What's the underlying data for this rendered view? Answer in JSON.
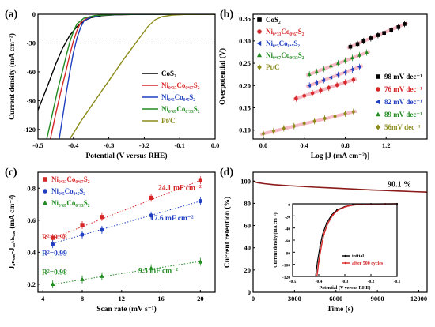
{
  "chart_data": [
    {
      "panel": "(a)",
      "type": "line",
      "xlabel": "Potential (V versus RHE)",
      "ylabel": "Current density (mA cm⁻²)",
      "xlim": [
        -0.5,
        0.0
      ],
      "ylim": [
        -130,
        0
      ],
      "xticks": [
        "-0.5",
        "-0.4",
        "-0.3",
        "-0.2",
        "-0.1",
        "0.0"
      ],
      "xtick_values": [
        -0.5,
        -0.4,
        -0.3,
        -0.2,
        -0.1,
        0.0
      ],
      "yticks": [
        "0",
        "-30",
        "-60",
        "-90",
        "-120"
      ],
      "ytick_values": [
        0,
        -30,
        -60,
        -90,
        -120
      ],
      "reference_line": -30,
      "legend_position": "bottom-right",
      "series": [
        {
          "name": "CoS₂",
          "color": "#000000",
          "x": [
            -0.53,
            -0.5,
            -0.47,
            -0.45,
            -0.43,
            -0.41,
            -0.39,
            -0.37,
            -0.35,
            -0.32,
            -0.28,
            -0.22,
            -0.15,
            0.0
          ],
          "y": [
            -130,
            -100,
            -72,
            -52,
            -35,
            -22,
            -13,
            -7,
            -3.5,
            -1.5,
            -0.6,
            -0.2,
            -0.05,
            0
          ]
        },
        {
          "name": "Ni₀.₃₃Co₀.₆₇S₂",
          "color": "#d62728",
          "x": [
            -0.465,
            -0.45,
            -0.435,
            -0.42,
            -0.41,
            -0.4,
            -0.39,
            -0.38,
            -0.36,
            -0.33,
            -0.28,
            -0.2,
            0.0
          ],
          "y": [
            -130,
            -104,
            -80,
            -58,
            -42,
            -28,
            -17,
            -9,
            -3.5,
            -1.2,
            -0.4,
            -0.1,
            0
          ]
        },
        {
          "name": "Ni₀.₅Co₀.₅S₂",
          "color": "#1f3fbf",
          "x": [
            -0.44,
            -0.43,
            -0.42,
            -0.41,
            -0.4,
            -0.39,
            -0.38,
            -0.37,
            -0.35,
            -0.32,
            -0.27,
            -0.2,
            0.0
          ],
          "y": [
            -130,
            -106,
            -82,
            -60,
            -40,
            -25,
            -14,
            -7,
            -2.8,
            -1.0,
            -0.3,
            -0.1,
            0
          ]
        },
        {
          "name": "Ni₀.₆₇Co₀.₃₃S₂",
          "color": "#228b22",
          "x": [
            -0.475,
            -0.46,
            -0.445,
            -0.43,
            -0.42,
            -0.41,
            -0.4,
            -0.39,
            -0.37,
            -0.34,
            -0.29,
            -0.21,
            0.0
          ],
          "y": [
            -130,
            -105,
            -80,
            -58,
            -43,
            -29,
            -18,
            -10,
            -4,
            -1.4,
            -0.4,
            -0.1,
            0
          ]
        },
        {
          "name": "Pt/C",
          "color": "#8b8b1a",
          "x": [
            -0.41,
            -0.38,
            -0.35,
            -0.32,
            -0.29,
            -0.26,
            -0.23,
            -0.21,
            -0.19,
            -0.17,
            -0.15,
            -0.12,
            -0.08,
            0.0
          ],
          "y": [
            -130,
            -112,
            -96,
            -80,
            -64,
            -48,
            -33,
            -23,
            -13,
            -6,
            -2.5,
            -0.8,
            -0.2,
            0
          ]
        }
      ]
    },
    {
      "panel": "(b)",
      "type": "scatter",
      "xlabel": "Log [J (mA cm⁻²)]",
      "ylabel": "Overpotential (V)",
      "xlim": [
        -0.1,
        1.6
      ],
      "ylim": [
        0.08,
        0.36
      ],
      "xticks": [
        "0.0",
        "0.4",
        "0.8",
        "1.2"
      ],
      "xtick_values": [
        0.0,
        0.4,
        0.8,
        1.2
      ],
      "yticks": [
        "0.10",
        "0.15",
        "0.20",
        "0.25",
        "0.30",
        "0.35"
      ],
      "ytick_values": [
        0.1,
        0.15,
        0.2,
        0.25,
        0.3,
        0.35
      ],
      "legend_position": "top-left",
      "slope_legend_position": "bottom-right",
      "series": [
        {
          "name": "CoS₂",
          "color": "#000000",
          "marker": "square",
          "slope": "98 mV dec⁻¹",
          "x": [
            0.85,
            0.92,
            0.98,
            1.05,
            1.12,
            1.18,
            1.25,
            1.32,
            1.38
          ],
          "y": [
            0.287,
            0.293,
            0.3,
            0.306,
            0.313,
            0.318,
            0.325,
            0.331,
            0.338
          ]
        },
        {
          "name": "Ni₀.₃₃Co₀.₆₇S₂",
          "color": "#d62728",
          "marker": "circle",
          "slope": "76 mV dec⁻¹",
          "x": [
            0.32,
            0.4,
            0.48,
            0.56,
            0.64,
            0.72,
            0.8,
            0.88
          ],
          "y": [
            0.171,
            0.177,
            0.183,
            0.189,
            0.195,
            0.201,
            0.207,
            0.213
          ]
        },
        {
          "name": "Ni₀.₅Co₀.₅S₂",
          "color": "#1f3fbf",
          "marker": "triangle-left",
          "slope": "82 mV dec⁻¹",
          "x": [
            0.45,
            0.52,
            0.59,
            0.66,
            0.73,
            0.8,
            0.87,
            0.94
          ],
          "y": [
            0.2,
            0.206,
            0.212,
            0.218,
            0.224,
            0.23,
            0.236,
            0.242
          ]
        },
        {
          "name": "Ni₀.₆₇Co₀.₃₃S₂",
          "color": "#228b22",
          "marker": "triangle-up",
          "slope": "89 mV dec⁻¹",
          "x": [
            0.45,
            0.52,
            0.59,
            0.66,
            0.73,
            0.8,
            0.87,
            0.94,
            1.01
          ],
          "y": [
            0.225,
            0.231,
            0.237,
            0.244,
            0.25,
            0.256,
            0.262,
            0.268,
            0.274
          ]
        },
        {
          "name": "Pt/C",
          "color": "#8b8b1a",
          "marker": "diamond",
          "slope": "56mV dec⁻¹",
          "x": [
            0.0,
            0.1,
            0.2,
            0.3,
            0.4,
            0.5,
            0.6,
            0.7,
            0.8,
            0.88
          ],
          "y": [
            0.092,
            0.098,
            0.104,
            0.109,
            0.115,
            0.12,
            0.126,
            0.131,
            0.137,
            0.141
          ]
        }
      ]
    },
    {
      "panel": "(c)",
      "type": "scatter",
      "xlabel": "Scan rate (mV s⁻¹)",
      "ylabel": "Jₐₙₒₔₑ-Jₔₐₜₕₒₔₑ (mA cm⁻²)",
      "xlim": [
        3.5,
        21.5
      ],
      "ylim": [
        0.15,
        0.9
      ],
      "xticks": [
        "4",
        "8",
        "12",
        "16",
        "20"
      ],
      "xtick_values": [
        4,
        8,
        12,
        16,
        20
      ],
      "yticks": [
        "0.2",
        "0.4",
        "0.6",
        "0.8"
      ],
      "ytick_values": [
        0.2,
        0.4,
        0.6,
        0.8
      ],
      "legend_position": "top-left",
      "series": [
        {
          "name": "Ni₀.₃₃Co₀.₆₇S₂",
          "color": "#d62728",
          "marker": "square",
          "x": [
            5,
            8,
            10,
            15,
            20
          ],
          "y": [
            0.49,
            0.57,
            0.62,
            0.74,
            0.85
          ],
          "fit": [
            [
              5,
              0.487
            ],
            [
              20,
              0.849
            ]
          ],
          "r2": "R²=0.98",
          "capacitance": "24.1 mF cm⁻²"
        },
        {
          "name": "Ni₀.₅Co₀.₅S₂",
          "color": "#1f3fbf",
          "marker": "circle",
          "x": [
            5,
            8,
            10,
            15,
            20
          ],
          "y": [
            0.45,
            0.51,
            0.54,
            0.63,
            0.72
          ],
          "fit": [
            [
              5,
              0.455
            ],
            [
              20,
              0.719
            ]
          ],
          "r2": "R²=0.99",
          "capacitance": "17.6 mF cm⁻²"
        },
        {
          "name": "Ni₀.₆₇Co₀.₃₃S₂",
          "color": "#228b22",
          "marker": "triangle-up",
          "x": [
            5,
            8,
            10,
            15,
            20
          ],
          "y": [
            0.2,
            0.23,
            0.25,
            0.3,
            0.34
          ],
          "fit": [
            [
              5,
              0.2
            ],
            [
              20,
              0.343
            ]
          ],
          "r2": "R²=0.98",
          "capacitance": "9.5 mF cm⁻²"
        }
      ]
    },
    {
      "panel": "(d)",
      "type": "line",
      "xlabel": "Time (s)",
      "ylabel": "Current retention (%)",
      "xlim": [
        0,
        12600
      ],
      "ylim": [
        0,
        108
      ],
      "xticks": [
        "0",
        "3000",
        "6000",
        "9000",
        "12000"
      ],
      "xtick_values": [
        0,
        3000,
        6000,
        9000,
        12000
      ],
      "yticks": [
        "0",
        "20",
        "40",
        "60",
        "80",
        "100"
      ],
      "ytick_values": [
        0,
        20,
        40,
        60,
        80,
        100
      ],
      "annotation": "90.1 %",
      "series": [
        {
          "name": "retention",
          "color": "#8b1a1a",
          "x": [
            0,
            300,
            800,
            1500,
            2500,
            3500,
            4500,
            5500,
            6500,
            7500,
            8500,
            9500,
            10500,
            11500,
            12600
          ],
          "y": [
            100,
            98.6,
            97.7,
            96.8,
            95.9,
            95.2,
            94.5,
            93.9,
            93.3,
            92.7,
            92.1,
            91.6,
            91.1,
            90.6,
            90.1
          ]
        }
      ],
      "inset": {
        "xlabel": "Potential (V versus RHE)",
        "ylabel": "Current density (mA cm⁻²)",
        "xlim": [
          -0.5,
          -0.1
        ],
        "ylim": [
          -120,
          0
        ],
        "xticks": [
          "-0.5",
          "-0.4",
          "-0.3",
          "-0.2",
          "-0.1"
        ],
        "xtick_values": [
          -0.5,
          -0.4,
          -0.3,
          -0.2,
          -0.1
        ],
        "yticks": [
          "0",
          "-20",
          "-40",
          "-60",
          "-80",
          "-100",
          "-120"
        ],
        "ytick_values": [
          0,
          -20,
          -40,
          -60,
          -80,
          -100,
          -120
        ],
        "legend_position": "bottom-right",
        "series": [
          {
            "name": "initial",
            "color": "#000000",
            "x": [
              -0.412,
              -0.405,
              -0.395,
              -0.385,
              -0.37,
              -0.35,
              -0.33,
              -0.3,
              -0.27,
              -0.24,
              -0.2,
              -0.15,
              -0.1
            ],
            "y": [
              -120,
              -96,
              -70,
              -50,
              -32,
              -18,
              -10,
              -4.5,
              -2,
              -0.9,
              -0.3,
              -0.1,
              0
            ]
          },
          {
            "name": "after 500 cycles",
            "color": "#d62728",
            "x": [
              -0.407,
              -0.4,
              -0.39,
              -0.38,
              -0.365,
              -0.345,
              -0.325,
              -0.295,
              -0.265,
              -0.235,
              -0.195,
              -0.145,
              -0.1
            ],
            "y": [
              -120,
              -96,
              -70,
              -50,
              -32,
              -18,
              -10,
              -4.5,
              -2,
              -0.9,
              -0.3,
              -0.1,
              0
            ]
          }
        ]
      }
    }
  ]
}
